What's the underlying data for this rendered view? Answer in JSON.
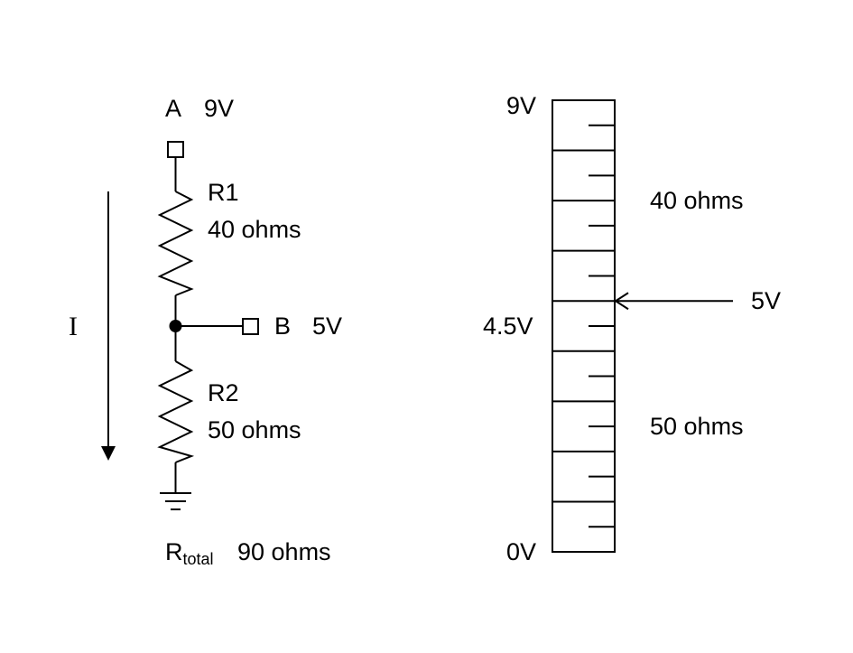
{
  "circuit": {
    "node_a": {
      "name": "A",
      "voltage": "9V"
    },
    "r1": {
      "name": "R1",
      "value": "40 ohms"
    },
    "node_b": {
      "name": "B",
      "voltage": "5V"
    },
    "r2": {
      "name": "R2",
      "value": "50 ohms"
    },
    "current_label": "I",
    "total": {
      "symbol": "R",
      "subscript": "total",
      "value": "90 ohms"
    }
  },
  "scale": {
    "top_label": "9V",
    "mid_label": "4.5V",
    "bottom_label": "0V",
    "upper_label": "40 ohms",
    "lower_label": "50 ohms",
    "marker_label": "5V",
    "max_volts": 9,
    "min_volts": 0,
    "marker_volts": 5,
    "tick_count": 17
  }
}
